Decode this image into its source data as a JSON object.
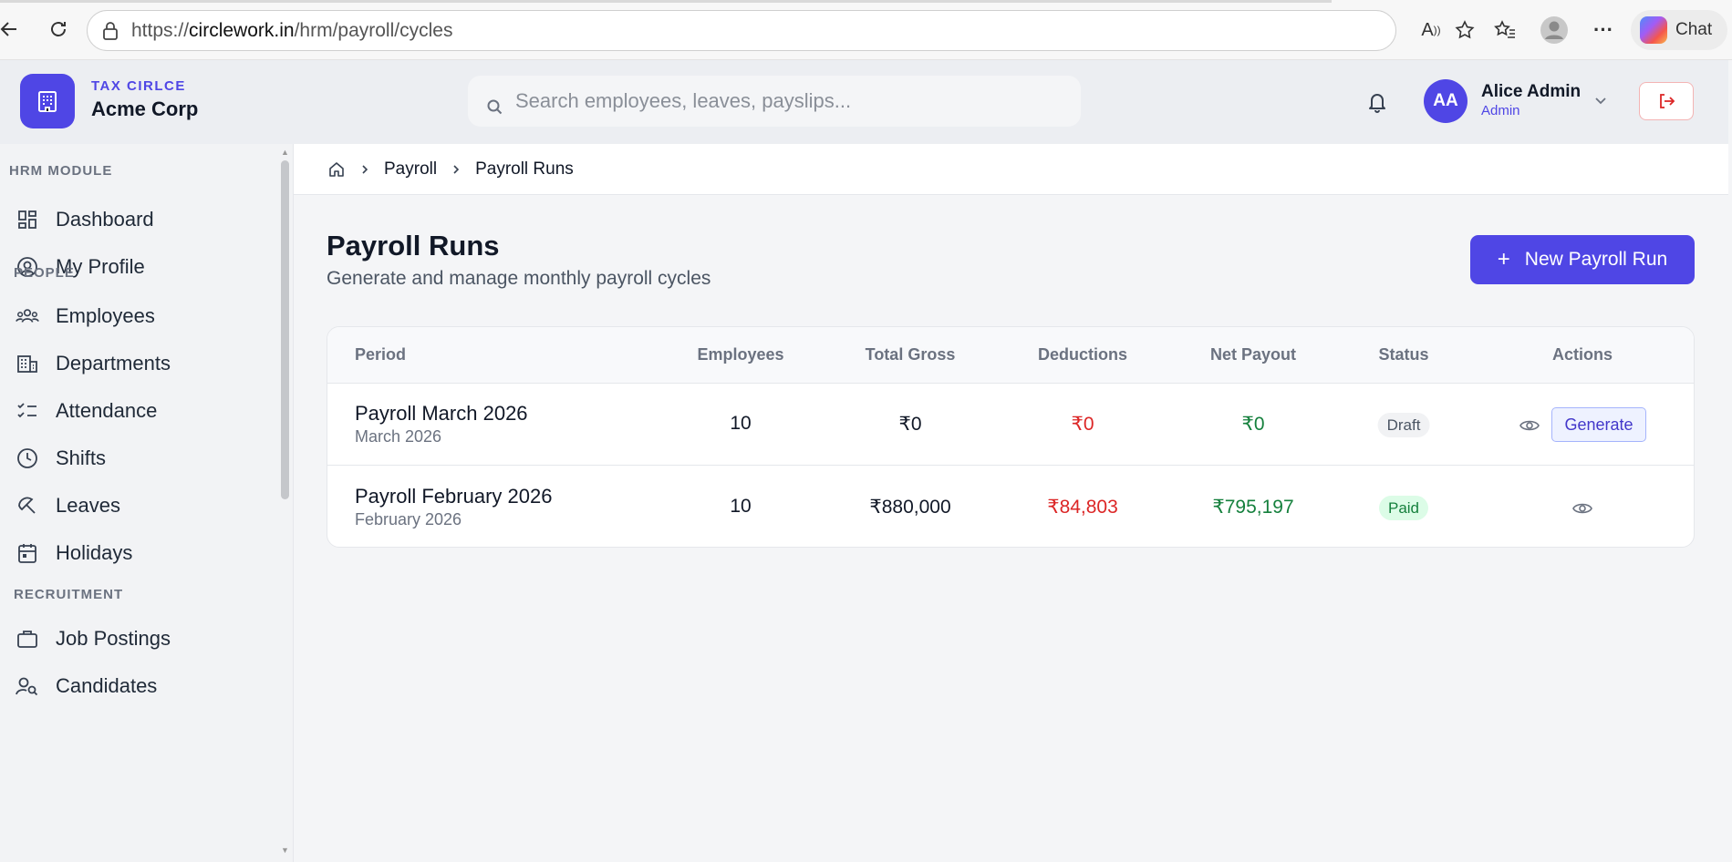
{
  "browser": {
    "url_prefix": "https://",
    "url_domain": "circlework.in",
    "url_path": "/hrm/payroll/cycles",
    "chat_label": "Chat"
  },
  "header": {
    "brand_tag": "TAX CIRLCE",
    "brand_name": "Acme Corp",
    "search_placeholder": "Search employees, leaves, payslips...",
    "user_initials": "AA",
    "user_name": "Alice Admin",
    "user_role": "Admin"
  },
  "sidebar": {
    "sections": [
      {
        "title": "HRM MODULE"
      },
      {
        "title": "PEOPLE"
      },
      {
        "title": "RECRUITMENT"
      }
    ],
    "items": [
      {
        "label": "Dashboard",
        "icon": "dashboard-icon"
      },
      {
        "label": "My Profile",
        "icon": "user-circle-icon"
      },
      {
        "label": "Employees",
        "icon": "users-icon"
      },
      {
        "label": "Departments",
        "icon": "building-icon"
      },
      {
        "label": "Attendance",
        "icon": "checklist-icon"
      },
      {
        "label": "Shifts",
        "icon": "clock-icon"
      },
      {
        "label": "Leaves",
        "icon": "umbrella-icon"
      },
      {
        "label": "Holidays",
        "icon": "calendar-icon"
      },
      {
        "label": "Job Postings",
        "icon": "briefcase-icon"
      },
      {
        "label": "Candidates",
        "icon": "user-search-icon"
      }
    ]
  },
  "breadcrumb": {
    "items": [
      "Payroll",
      "Payroll Runs"
    ]
  },
  "page": {
    "title": "Payroll Runs",
    "subtitle": "Generate and manage monthly payroll cycles",
    "new_button": "New Payroll Run",
    "new_button_icon": "+"
  },
  "table": {
    "columns": [
      "Period",
      "Employees",
      "Total Gross",
      "Deductions",
      "Net Payout",
      "Status",
      "Actions"
    ],
    "rows": [
      {
        "title": "Payroll March 2026",
        "period": "March 2026",
        "employees": "10",
        "gross": "₹0",
        "deductions": "₹0",
        "net": "₹0",
        "status": "Draft",
        "action_label": "Generate"
      },
      {
        "title": "Payroll February 2026",
        "period": "February 2026",
        "employees": "10",
        "gross": "₹880,000",
        "deductions": "₹84,803",
        "net": "₹795,197",
        "status": "Paid"
      }
    ]
  },
  "colors": {
    "accent": "#4f46e5",
    "danger": "#dc2626",
    "success": "#15803d"
  }
}
